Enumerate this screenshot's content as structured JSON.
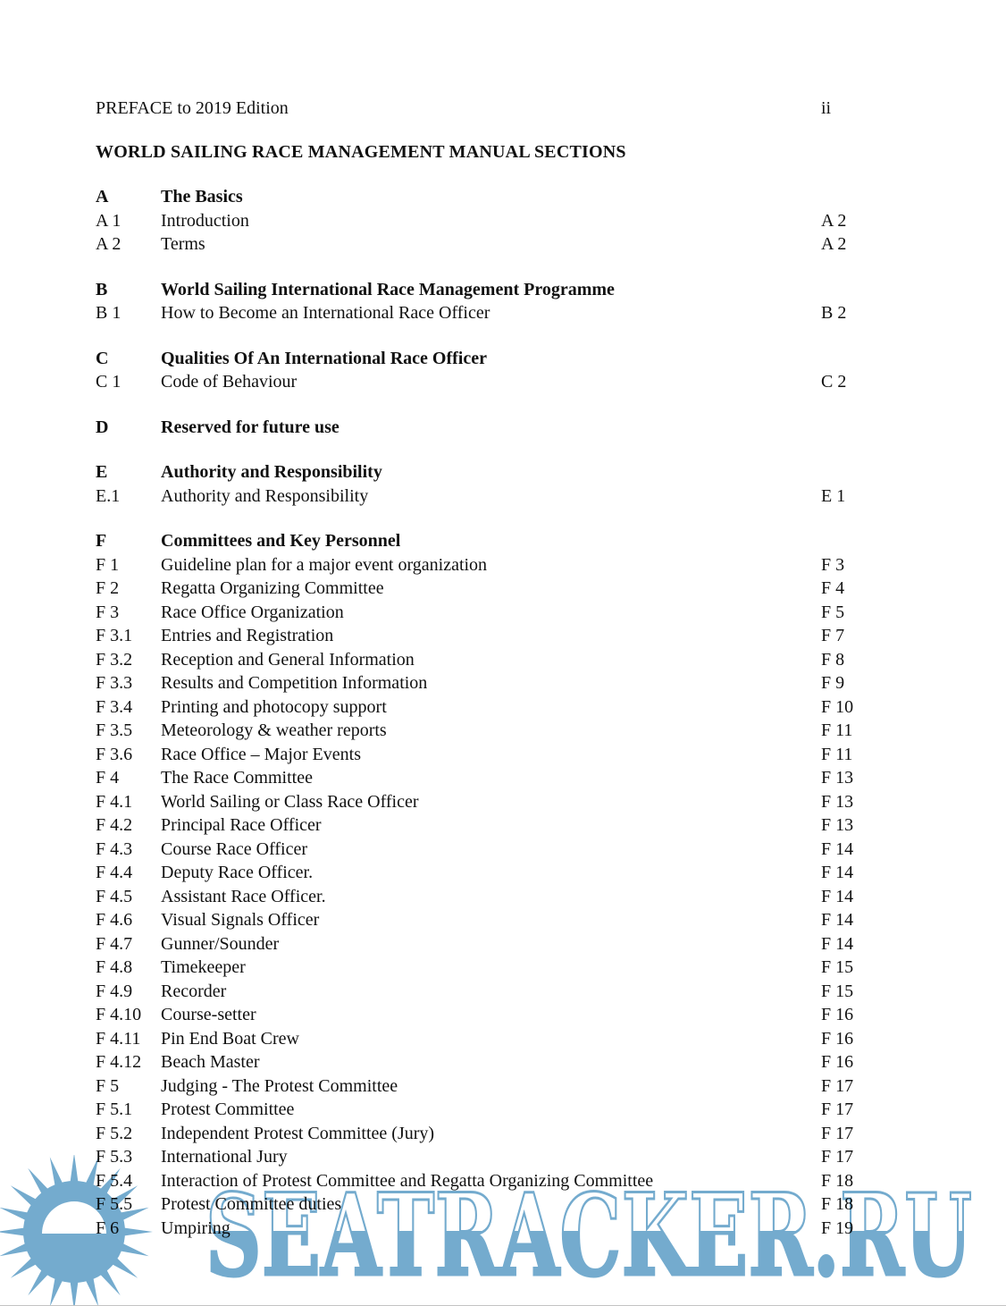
{
  "page": {
    "header_left": "PREFACE to 2019 Edition",
    "header_right": "ii",
    "title": "WORLD SAILING RACE MANAGEMENT MANUAL SECTIONS"
  },
  "sections": [
    {
      "id": "A",
      "title": "The Basics",
      "entries": [
        {
          "id": "A 1",
          "title": "Introduction",
          "page": "A 2"
        },
        {
          "id": "A 2",
          "title": "Terms",
          "page": "A 2"
        }
      ]
    },
    {
      "id": "B",
      "title": "World Sailing International Race Management Programme",
      "entries": [
        {
          "id": "B 1",
          "title": "How to Become an International Race Officer",
          "page": "B 2"
        }
      ]
    },
    {
      "id": "C",
      "title": "Qualities Of An International Race Officer",
      "entries": [
        {
          "id": "C 1",
          "title": "Code of Behaviour",
          "page": "C 2"
        }
      ]
    },
    {
      "id": "D",
      "title": "Reserved for future use",
      "entries": []
    },
    {
      "id": "E",
      "title": "Authority and Responsibility",
      "entries": [
        {
          "id": "E.1",
          "title": "Authority and Responsibility",
          "page": "E 1"
        }
      ]
    },
    {
      "id": "F",
      "title": "Committees and Key Personnel",
      "entries": [
        {
          "id": "F 1",
          "title": "Guideline plan for a major event organization",
          "page": "F 3"
        },
        {
          "id": "F 2",
          "title": "Regatta Organizing Committee",
          "page": "F 4"
        },
        {
          "id": "F 3",
          "title": "Race Office Organization",
          "page": "F 5"
        },
        {
          "id": "F 3.1",
          "title": "Entries and Registration",
          "page": "F 7"
        },
        {
          "id": "F 3.2",
          "title": "Reception and General Information",
          "page": "F 8"
        },
        {
          "id": "F 3.3",
          "title": "Results and Competition Information",
          "page": "F 9"
        },
        {
          "id": "F 3.4",
          "title": "Printing and photocopy support",
          "page": "F 10"
        },
        {
          "id": "F 3.5",
          "title": "Meteorology & weather reports",
          "page": "F 11"
        },
        {
          "id": "F 3.6",
          "title": "Race Office – Major Events",
          "page": "F 11"
        },
        {
          "id": "F 4",
          "title": "The Race Committee",
          "page": "F 13"
        },
        {
          "id": "F 4.1",
          "title": "World Sailing or Class Race Officer",
          "page": "F 13"
        },
        {
          "id": "F 4.2",
          "title": "Principal Race Officer",
          "page": "F 13"
        },
        {
          "id": "F 4.3",
          "title": "Course Race Officer",
          "page": "F 14"
        },
        {
          "id": "F 4.4",
          "title": "Deputy Race Officer.",
          "page": "F 14"
        },
        {
          "id": "F 4.5",
          "title": "Assistant Race Officer.",
          "page": "F 14"
        },
        {
          "id": "F 4.6",
          "title": "Visual Signals Officer",
          "page": "F 14"
        },
        {
          "id": "F 4.7",
          "title": "Gunner/Sounder",
          "page": "F 14"
        },
        {
          "id": "F 4.8",
          "title": "Timekeeper",
          "page": "F 15"
        },
        {
          "id": "F 4.9",
          "title": "Recorder",
          "page": "F 15"
        },
        {
          "id": "F 4.10",
          "title": "Course-setter",
          "page": "F 16"
        },
        {
          "id": "F 4.11",
          "title": "Pin End Boat Crew",
          "page": "F 16"
        },
        {
          "id": "F 4.12",
          "title": "Beach Master",
          "page": "F 16"
        },
        {
          "id": "F 5",
          "title": "Judging - The Protest Committee",
          "page": "F 17"
        },
        {
          "id": "F 5.1",
          "title": "Protest Committee",
          "page": "F 17"
        },
        {
          "id": "F 5.2",
          "title": "Independent Protest Committee (Jury)",
          "page": "F 17"
        },
        {
          "id": "F 5.3",
          "title": "International Jury",
          "page": "F 17"
        },
        {
          "id": "F 5.4",
          "title": "Interaction of Protest Committee and Regatta Organizing Committee",
          "page": "F 18"
        },
        {
          "id": "F 5.5",
          "title": "Protest Committee duties",
          "page": "F 18"
        },
        {
          "id": "F 6",
          "title": "Umpiring",
          "page": "F 19"
        }
      ]
    }
  ],
  "watermark": {
    "text": "SEATRACKER.RU",
    "color": "#74abce",
    "logo": "sun-logo"
  }
}
